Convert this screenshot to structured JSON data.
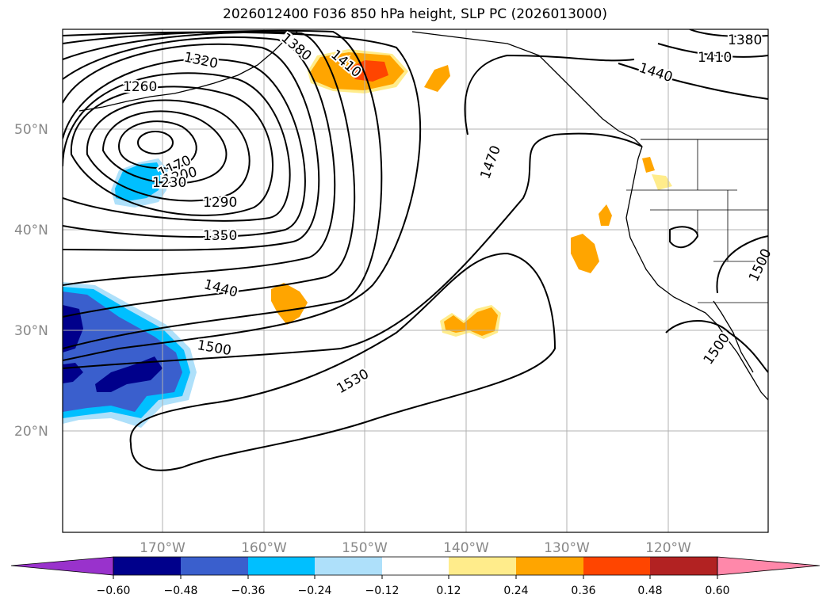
{
  "title": "2026012400 F036 850 hPa height, SLP PC (2026013000)",
  "lat_labels": [
    "50°N",
    "40°N",
    "30°N",
    "20°N"
  ],
  "lon_labels": [
    "170°W",
    "160°W",
    "150°W",
    "140°W",
    "130°W",
    "120°W"
  ],
  "colorbar": {
    "ticks": [
      "−0.60",
      "−0.48",
      "−0.36",
      "−0.24",
      "−0.12",
      "0.12",
      "0.24",
      "0.36",
      "0.48",
      "0.60"
    ],
    "colors": [
      "#9932cc",
      "#00008b",
      "#3a5fcd",
      "#00bfff",
      "#aee0fa",
      "#ffffff",
      "#ffec8b",
      "#ffa500",
      "#ff4500",
      "#b22222",
      "#ff88aa"
    ]
  },
  "contour_labels": [
    "1380",
    "1410",
    "1320",
    "1260",
    "1380",
    "1410",
    "1440",
    "1470",
    "1170",
    "1200",
    "1230",
    "1290",
    "1350",
    "1440",
    "1500",
    "1530",
    "1500",
    "1500"
  ],
  "colors": {
    "grid": "#b0b0b0",
    "axis_text": "#888888",
    "contour": "#000000"
  }
}
